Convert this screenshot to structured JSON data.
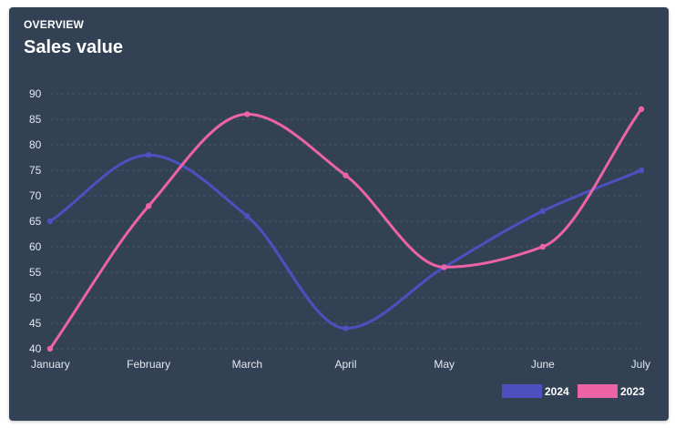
{
  "card": {
    "eyebrow": "OVERVIEW",
    "title": "Sales value"
  },
  "chart_data": {
    "type": "line",
    "categories": [
      "January",
      "February",
      "March",
      "April",
      "May",
      "June",
      "July"
    ],
    "series": [
      {
        "name": "2024",
        "values": [
          65,
          78,
          66,
          44,
          56,
          67,
          75
        ],
        "color": "#4c51bf"
      },
      {
        "name": "2023",
        "values": [
          40,
          68,
          86,
          74,
          56,
          60,
          87
        ],
        "color": "#ed64a6"
      }
    ],
    "ylim": [
      40,
      90
    ],
    "yticks": [
      40,
      45,
      50,
      55,
      60,
      65,
      70,
      75,
      80,
      85,
      90
    ],
    "grid": true,
    "legend_position": "bottom-right",
    "curve": "smooth",
    "colors": {
      "background": "#334155",
      "grid": "#475569",
      "text": "#e2e8f0"
    }
  }
}
